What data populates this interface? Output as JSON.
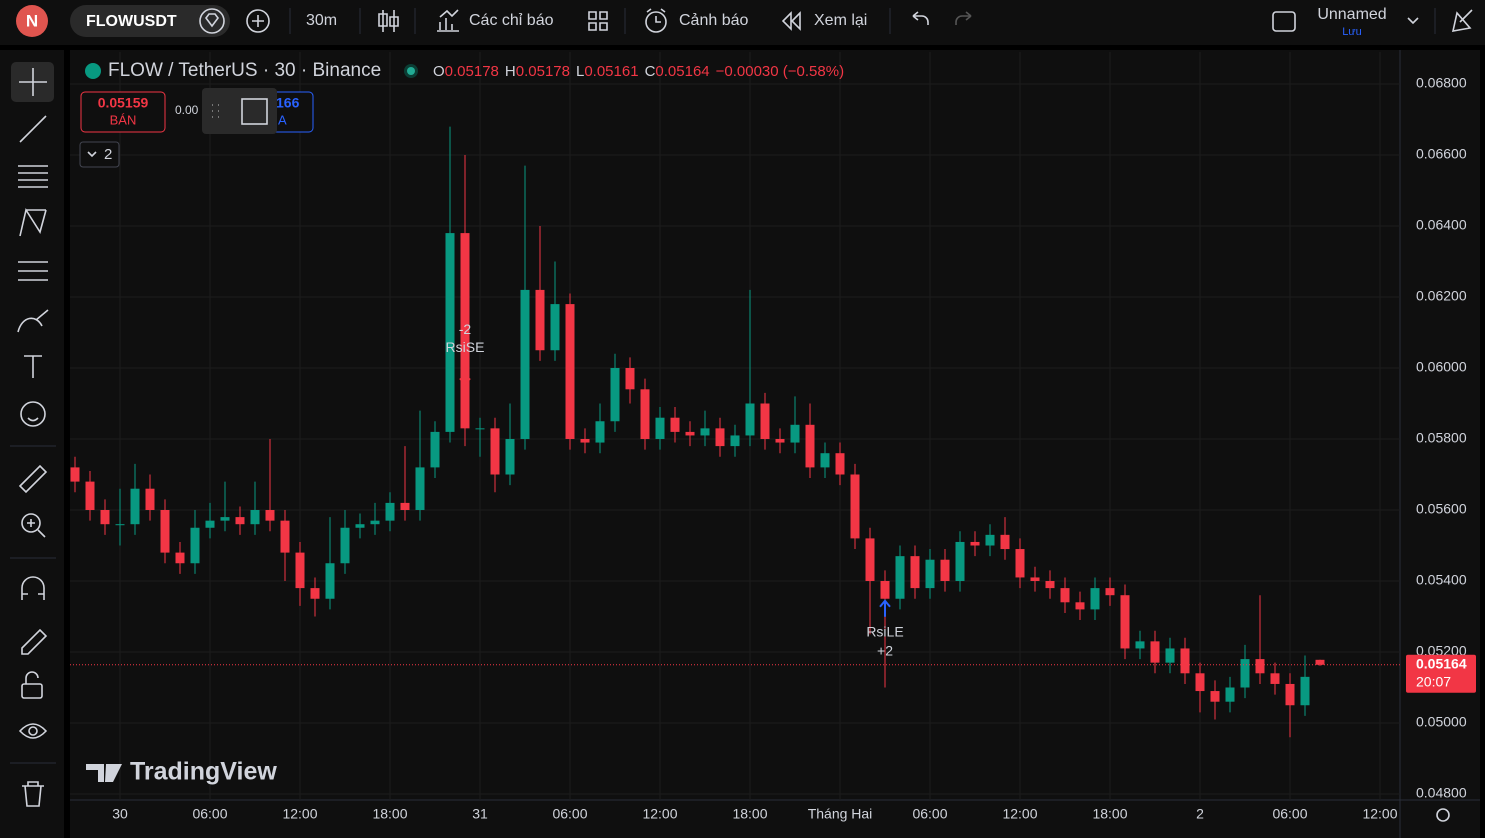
{
  "toolbar": {
    "avatar": "N",
    "symbol": "FLOWUSDT",
    "interval": "30m",
    "indicators": "Các chỉ báo",
    "alerts": "Cảnh báo",
    "replay": "Xem lại",
    "layout_name": "Unnamed",
    "save": "Lưu"
  },
  "legend": {
    "title": "FLOW / TetherUS · 30 · Binance",
    "open_label": "O",
    "open": "0.05178",
    "high_label": "H",
    "high": "0.05178",
    "low_label": "L",
    "low": "0.05161",
    "close_label": "C",
    "close": "0.05164",
    "change": "−0.00030 (−0.58%)"
  },
  "trade": {
    "sell_price": "0.05159",
    "sell": "BÁN",
    "spread": "0.00",
    "buy_price": "166",
    "buy": "A"
  },
  "indicators_toggle": "2",
  "watermark": "TradingView",
  "chart_data": {
    "type": "candlestick",
    "colors": {
      "up": "#089981",
      "down": "#f23645"
    },
    "candles": [
      [
        0.0572,
        0.0575,
        0.0565,
        0.0568
      ],
      [
        0.0568,
        0.0571,
        0.0557,
        0.056
      ],
      [
        0.056,
        0.0563,
        0.0553,
        0.0556
      ],
      [
        0.0556,
        0.0566,
        0.055,
        0.0556
      ],
      [
        0.0556,
        0.0573,
        0.0553,
        0.0566
      ],
      [
        0.0566,
        0.057,
        0.0557,
        0.056
      ],
      [
        0.056,
        0.0563,
        0.0545,
        0.0548
      ],
      [
        0.0548,
        0.0551,
        0.0542,
        0.0545
      ],
      [
        0.0545,
        0.056,
        0.0542,
        0.0555
      ],
      [
        0.0555,
        0.0562,
        0.0552,
        0.0557
      ],
      [
        0.0557,
        0.0568,
        0.0554,
        0.0558
      ],
      [
        0.0558,
        0.0561,
        0.0553,
        0.0556
      ],
      [
        0.0556,
        0.0568,
        0.0553,
        0.056
      ],
      [
        0.056,
        0.058,
        0.0554,
        0.0557
      ],
      [
        0.0557,
        0.056,
        0.054,
        0.0548
      ],
      [
        0.0548,
        0.0551,
        0.0533,
        0.0538
      ],
      [
        0.0538,
        0.0541,
        0.053,
        0.0535
      ],
      [
        0.0535,
        0.0558,
        0.0532,
        0.0545
      ],
      [
        0.0545,
        0.056,
        0.0542,
        0.0555
      ],
      [
        0.0555,
        0.0559,
        0.0552,
        0.0556
      ],
      [
        0.0556,
        0.0562,
        0.0553,
        0.0557
      ],
      [
        0.0557,
        0.0565,
        0.0554,
        0.0562
      ],
      [
        0.0562,
        0.0578,
        0.0557,
        0.056
      ],
      [
        0.056,
        0.0588,
        0.0557,
        0.0572
      ],
      [
        0.0572,
        0.0585,
        0.0569,
        0.0582
      ],
      [
        0.0582,
        0.0668,
        0.0579,
        0.0638
      ],
      [
        0.0638,
        0.066,
        0.0578,
        0.0583
      ],
      [
        0.0583,
        0.0586,
        0.0575,
        0.0583
      ],
      [
        0.0583,
        0.0586,
        0.0565,
        0.057
      ],
      [
        0.057,
        0.059,
        0.0567,
        0.058
      ],
      [
        0.058,
        0.0657,
        0.0577,
        0.0622
      ],
      [
        0.0622,
        0.064,
        0.0602,
        0.0605
      ],
      [
        0.0605,
        0.063,
        0.0602,
        0.0618
      ],
      [
        0.0618,
        0.0621,
        0.0577,
        0.058
      ],
      [
        0.058,
        0.0583,
        0.0576,
        0.0579
      ],
      [
        0.0579,
        0.059,
        0.0576,
        0.0585
      ],
      [
        0.0585,
        0.0604,
        0.0582,
        0.06
      ],
      [
        0.06,
        0.0603,
        0.059,
        0.0594
      ],
      [
        0.0594,
        0.0597,
        0.0577,
        0.058
      ],
      [
        0.058,
        0.0589,
        0.0577,
        0.0586
      ],
      [
        0.0586,
        0.0589,
        0.0579,
        0.0582
      ],
      [
        0.0582,
        0.0585,
        0.0578,
        0.0581
      ],
      [
        0.0581,
        0.0588,
        0.0578,
        0.0583
      ],
      [
        0.0583,
        0.0586,
        0.0575,
        0.0578
      ],
      [
        0.0578,
        0.0584,
        0.0575,
        0.0581
      ],
      [
        0.0581,
        0.0622,
        0.0578,
        0.059
      ],
      [
        0.059,
        0.0593,
        0.0577,
        0.058
      ],
      [
        0.058,
        0.0583,
        0.0576,
        0.0579
      ],
      [
        0.0579,
        0.0592,
        0.0576,
        0.0584
      ],
      [
        0.0584,
        0.059,
        0.0569,
        0.0572
      ],
      [
        0.0572,
        0.0579,
        0.0569,
        0.0576
      ],
      [
        0.0576,
        0.0579,
        0.0567,
        0.057
      ],
      [
        0.057,
        0.0573,
        0.0549,
        0.0552
      ],
      [
        0.0552,
        0.0555,
        0.0525,
        0.054
      ],
      [
        0.054,
        0.0543,
        0.051,
        0.0535
      ],
      [
        0.0535,
        0.055,
        0.0532,
        0.0547
      ],
      [
        0.0547,
        0.055,
        0.0535,
        0.0538
      ],
      [
        0.0538,
        0.0549,
        0.0535,
        0.0546
      ],
      [
        0.0546,
        0.0549,
        0.0537,
        0.054
      ],
      [
        0.054,
        0.0554,
        0.0537,
        0.0551
      ],
      [
        0.0551,
        0.0554,
        0.0547,
        0.055
      ],
      [
        0.055,
        0.0556,
        0.0547,
        0.0553
      ],
      [
        0.0553,
        0.0558,
        0.0546,
        0.0549
      ],
      [
        0.0549,
        0.0552,
        0.0538,
        0.0541
      ],
      [
        0.0541,
        0.0544,
        0.0537,
        0.054
      ],
      [
        0.054,
        0.0543,
        0.0535,
        0.0538
      ],
      [
        0.0538,
        0.0541,
        0.0531,
        0.0534
      ],
      [
        0.0534,
        0.0537,
        0.0529,
        0.0532
      ],
      [
        0.0532,
        0.0541,
        0.0529,
        0.0538
      ],
      [
        0.0538,
        0.0541,
        0.0533,
        0.0536
      ],
      [
        0.0536,
        0.0539,
        0.0518,
        0.0521
      ],
      [
        0.0521,
        0.0526,
        0.0518,
        0.0523
      ],
      [
        0.0523,
        0.0526,
        0.0514,
        0.0517
      ],
      [
        0.0517,
        0.0524,
        0.0514,
        0.0521
      ],
      [
        0.0521,
        0.0524,
        0.0511,
        0.0514
      ],
      [
        0.0514,
        0.0517,
        0.0503,
        0.0509
      ],
      [
        0.0509,
        0.0512,
        0.0501,
        0.0506
      ],
      [
        0.0506,
        0.0513,
        0.0503,
        0.051
      ],
      [
        0.051,
        0.0522,
        0.0507,
        0.0518
      ],
      [
        0.0518,
        0.0536,
        0.0511,
        0.0514
      ],
      [
        0.0514,
        0.0517,
        0.0508,
        0.0511
      ],
      [
        0.0511,
        0.0514,
        0.0496,
        0.0505
      ],
      [
        0.0505,
        0.0519,
        0.0502,
        0.0513
      ],
      [
        0.05178,
        0.05178,
        0.05161,
        0.05164
      ]
    ],
    "ylim": [
      0.048,
      0.068
    ],
    "yticks": [
      {
        "value": 0.048,
        "label": "0.04800"
      },
      {
        "value": 0.05,
        "label": "0.05000"
      },
      {
        "value": 0.052,
        "label": "0.05200"
      },
      {
        "value": 0.054,
        "label": "0.05400"
      },
      {
        "value": 0.056,
        "label": "0.05600"
      },
      {
        "value": 0.058,
        "label": "0.05800"
      },
      {
        "value": 0.06,
        "label": "0.06000"
      },
      {
        "value": 0.062,
        "label": "0.06200"
      },
      {
        "value": 0.064,
        "label": "0.06400"
      },
      {
        "value": 0.066,
        "label": "0.06600"
      },
      {
        "value": 0.068,
        "label": "0.06800"
      }
    ],
    "xticks": [
      {
        "value": 3,
        "label": "30"
      },
      {
        "value": 9,
        "label": "06:00"
      },
      {
        "value": 15,
        "label": "12:00"
      },
      {
        "value": 21,
        "label": "18:00"
      },
      {
        "value": 27,
        "label": "31"
      },
      {
        "value": 33,
        "label": "06:00"
      },
      {
        "value": 39,
        "label": "12:00"
      },
      {
        "value": 45,
        "label": "18:00"
      },
      {
        "value": 51,
        "label": "Tháng Hai"
      },
      {
        "value": 57,
        "label": "06:00"
      },
      {
        "value": 63,
        "label": "12:00"
      },
      {
        "value": 69,
        "label": "18:00"
      },
      {
        "value": 75,
        "label": "2"
      },
      {
        "value": 81,
        "label": "06:00"
      },
      {
        "value": 87,
        "label": "12:00"
      }
    ],
    "grid": true,
    "last_price": 0.05164,
    "countdown": "20:07",
    "signals": [
      {
        "index": 26,
        "direction": "down",
        "labels": [
          "-2",
          "RsiSE"
        ]
      },
      {
        "index": 54,
        "direction": "up",
        "labels": [
          "RsiLE",
          "+2"
        ]
      }
    ]
  }
}
